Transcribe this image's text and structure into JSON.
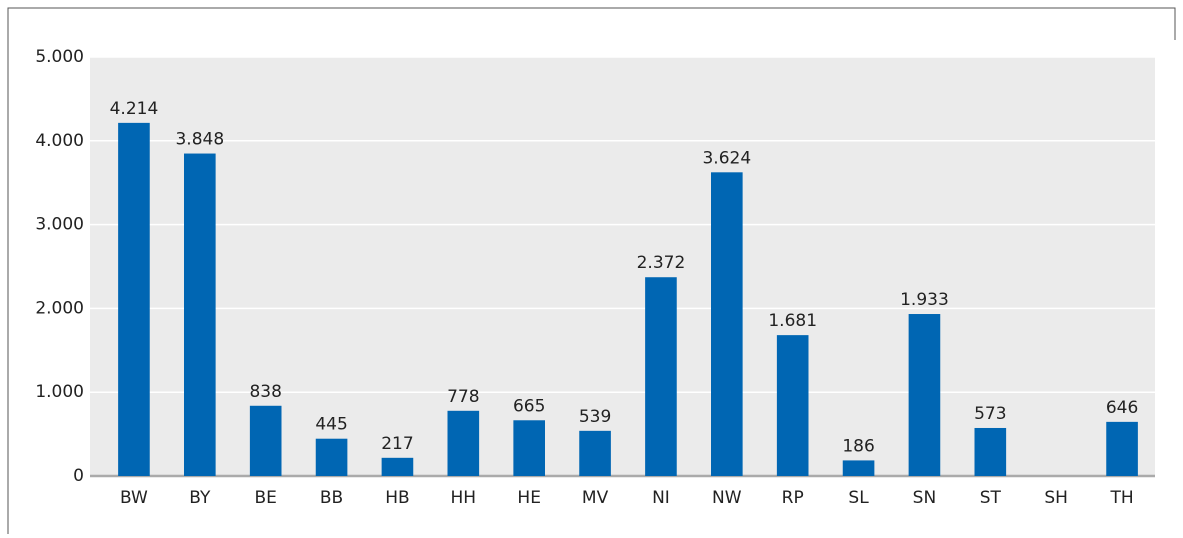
{
  "chart_data": {
    "type": "bar",
    "categories": [
      "BW",
      "BY",
      "BE",
      "BB",
      "HB",
      "HH",
      "HE",
      "MV",
      "NI",
      "NW",
      "RP",
      "SL",
      "SN",
      "ST",
      "SH",
      "TH"
    ],
    "values": [
      4214,
      3848,
      838,
      445,
      217,
      778,
      665,
      539,
      2372,
      3624,
      1681,
      186,
      1933,
      573,
      null,
      646
    ],
    "value_labels": [
      "4.214",
      "3.848",
      "838",
      "445",
      "217",
      "778",
      "665",
      "539",
      "2.372",
      "3.624",
      "1.681",
      "186",
      "1.933",
      "573",
      null,
      "646"
    ],
    "color": "#0066b3",
    "ylim": [
      0,
      5000
    ],
    "yticks": [
      0,
      {
        "value": 1000,
        "label": "1.000"
      },
      {
        "value": 2000,
        "label": "2.000"
      },
      {
        "value": 3000,
        "label": "3.000"
      },
      {
        "value": 4000,
        "label": "4.000"
      },
      {
        "value": 5000,
        "label": "5.000"
      }
    ],
    "grid": true
  }
}
